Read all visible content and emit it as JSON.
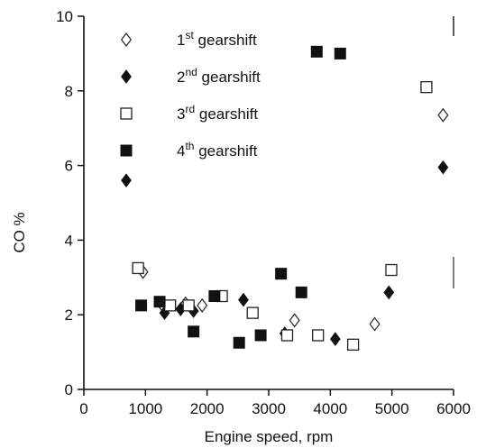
{
  "chart_data": {
    "type": "scatter",
    "xlabel": "Engine speed, rpm",
    "ylabel": "CO %",
    "xlim": [
      0,
      6000
    ],
    "ylim": [
      0,
      10
    ],
    "x_ticks": [
      "0",
      "1000",
      "2000",
      "3000",
      "4000",
      "5000",
      "6000"
    ],
    "y_ticks": [
      "0",
      "2",
      "4",
      "6",
      "8",
      "10"
    ],
    "grid": false,
    "legend_position": "top-left",
    "legend": [
      {
        "num": "1",
        "sup": "st",
        "label": "gearshift",
        "marker": "open-diamond"
      },
      {
        "num": "2",
        "sup": "nd",
        "label": "gearshift",
        "marker": "filled-diamond"
      },
      {
        "num": "3",
        "sup": "rd",
        "label": "gearshift",
        "marker": "open-square"
      },
      {
        "num": "4",
        "sup": "th",
        "label": "gearshift",
        "marker": "filled-square"
      }
    ],
    "series": [
      {
        "name": "1st gearshift",
        "marker": "open-diamond",
        "points": [
          [
            960,
            3.15
          ],
          [
            1280,
            2.25
          ],
          [
            1650,
            2.3
          ],
          [
            1920,
            2.25
          ],
          [
            3420,
            1.85
          ],
          [
            4720,
            1.75
          ],
          [
            5830,
            7.35
          ]
        ]
      },
      {
        "name": "2nd gearshift",
        "marker": "filled-diamond",
        "points": [
          [
            1310,
            2.05
          ],
          [
            1570,
            2.15
          ],
          [
            1780,
            2.1
          ],
          [
            2590,
            2.4
          ],
          [
            3260,
            1.5
          ],
          [
            4080,
            1.35
          ],
          [
            4950,
            2.6
          ],
          [
            5830,
            5.95
          ]
        ]
      },
      {
        "name": "3rd gearshift",
        "marker": "open-square",
        "points": [
          [
            880,
            3.25
          ],
          [
            1400,
            2.25
          ],
          [
            1700,
            2.25
          ],
          [
            2240,
            2.5
          ],
          [
            2740,
            2.05
          ],
          [
            3300,
            1.45
          ],
          [
            3800,
            1.45
          ],
          [
            4370,
            1.2
          ],
          [
            4990,
            3.2
          ],
          [
            5560,
            8.1
          ]
        ]
      },
      {
        "name": "4th gearshift",
        "marker": "filled-square",
        "points": [
          [
            930,
            2.25
          ],
          [
            1230,
            2.35
          ],
          [
            1780,
            1.55
          ],
          [
            2120,
            2.5
          ],
          [
            2520,
            1.25
          ],
          [
            2870,
            1.45
          ],
          [
            3200,
            3.1
          ],
          [
            3530,
            2.6
          ],
          [
            3780,
            9.05
          ],
          [
            4160,
            9.0
          ]
        ]
      }
    ]
  }
}
